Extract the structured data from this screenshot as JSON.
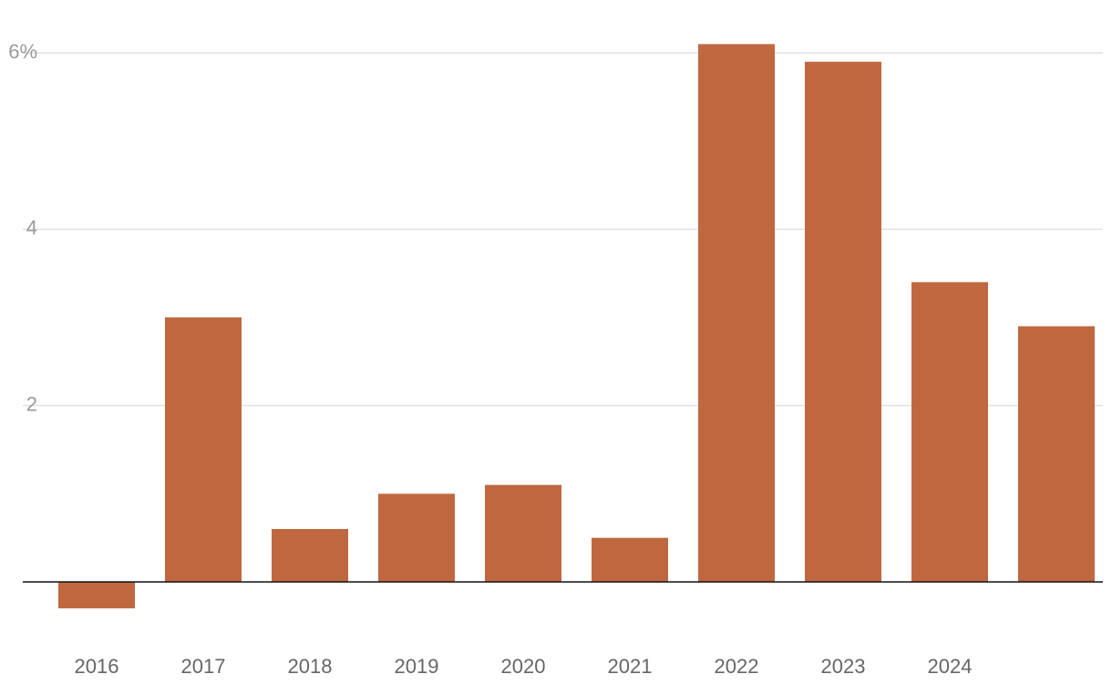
{
  "chart_data": {
    "type": "bar",
    "categories": [
      "2016",
      "2017",
      "2018",
      "2019",
      "2020",
      "2021",
      "2022",
      "2023",
      "2024",
      null
    ],
    "values": [
      -0.3,
      3.0,
      0.6,
      1.0,
      1.1,
      0.5,
      6.1,
      5.9,
      3.4,
      2.9
    ],
    "color": "#bf6840",
    "ylim": [
      -0.6,
      6.2
    ],
    "yticks": [
      2,
      4,
      {
        "value": 6,
        "label": "6%"
      }
    ],
    "grid": true
  }
}
